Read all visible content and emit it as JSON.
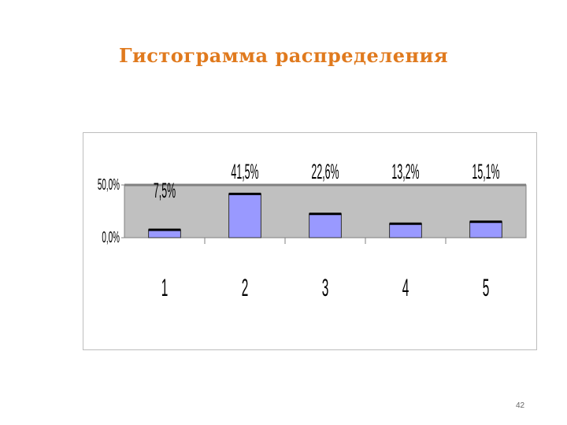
{
  "slide": {
    "title": "Гистограмма распределения",
    "page_number": "42"
  },
  "chart_data": {
    "type": "bar",
    "title": "",
    "xlabel": "",
    "ylabel": "",
    "categories": [
      "1",
      "2",
      "3",
      "4",
      "5"
    ],
    "values": [
      7.5,
      41.5,
      22.6,
      13.2,
      15.1
    ],
    "data_labels": [
      "7,5%",
      "41,5%",
      "22,6%",
      "13,2%",
      "15,1%"
    ],
    "y_ticks": [
      0,
      50
    ],
    "y_tick_labels": [
      "0,0%",
      "50,0%"
    ],
    "ylim": [
      0,
      50
    ],
    "grid": false,
    "legend": "none",
    "colors": {
      "bar_fill": "#9999ff",
      "bar_cap": "#000000",
      "plot_background": "#c0c0c0",
      "title": "#e07a1e"
    }
  }
}
